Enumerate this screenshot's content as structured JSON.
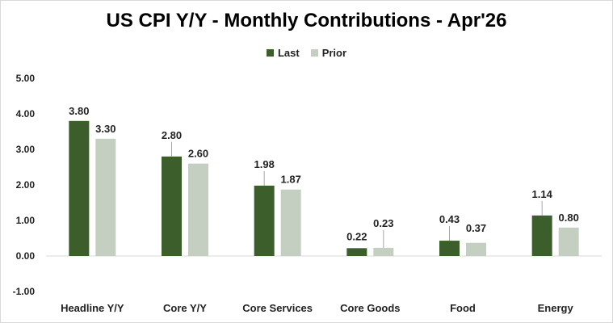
{
  "chart_data": {
    "type": "bar",
    "title": "US CPI Y/Y - Monthly Contributions - Apr'26",
    "categories": [
      "Headline Y/Y",
      "Core Y/Y",
      "Core Services",
      "Core Goods",
      "Food",
      "Energy"
    ],
    "series": [
      {
        "name": "Last",
        "values": [
          3.8,
          2.8,
          1.98,
          0.22,
          0.43,
          1.14
        ],
        "color": "#3b5e2b"
      },
      {
        "name": "Prior",
        "values": [
          3.3,
          2.6,
          1.87,
          0.23,
          0.37,
          0.8
        ],
        "color": "#c5cfc1"
      }
    ],
    "ylim": [
      -1.0,
      5.0
    ],
    "yticks": [
      "5.00",
      "4.00",
      "3.00",
      "2.00",
      "1.00",
      "0.00",
      "-1.00"
    ],
    "grid": false,
    "legend_position": "top-center",
    "data_labels": true
  }
}
